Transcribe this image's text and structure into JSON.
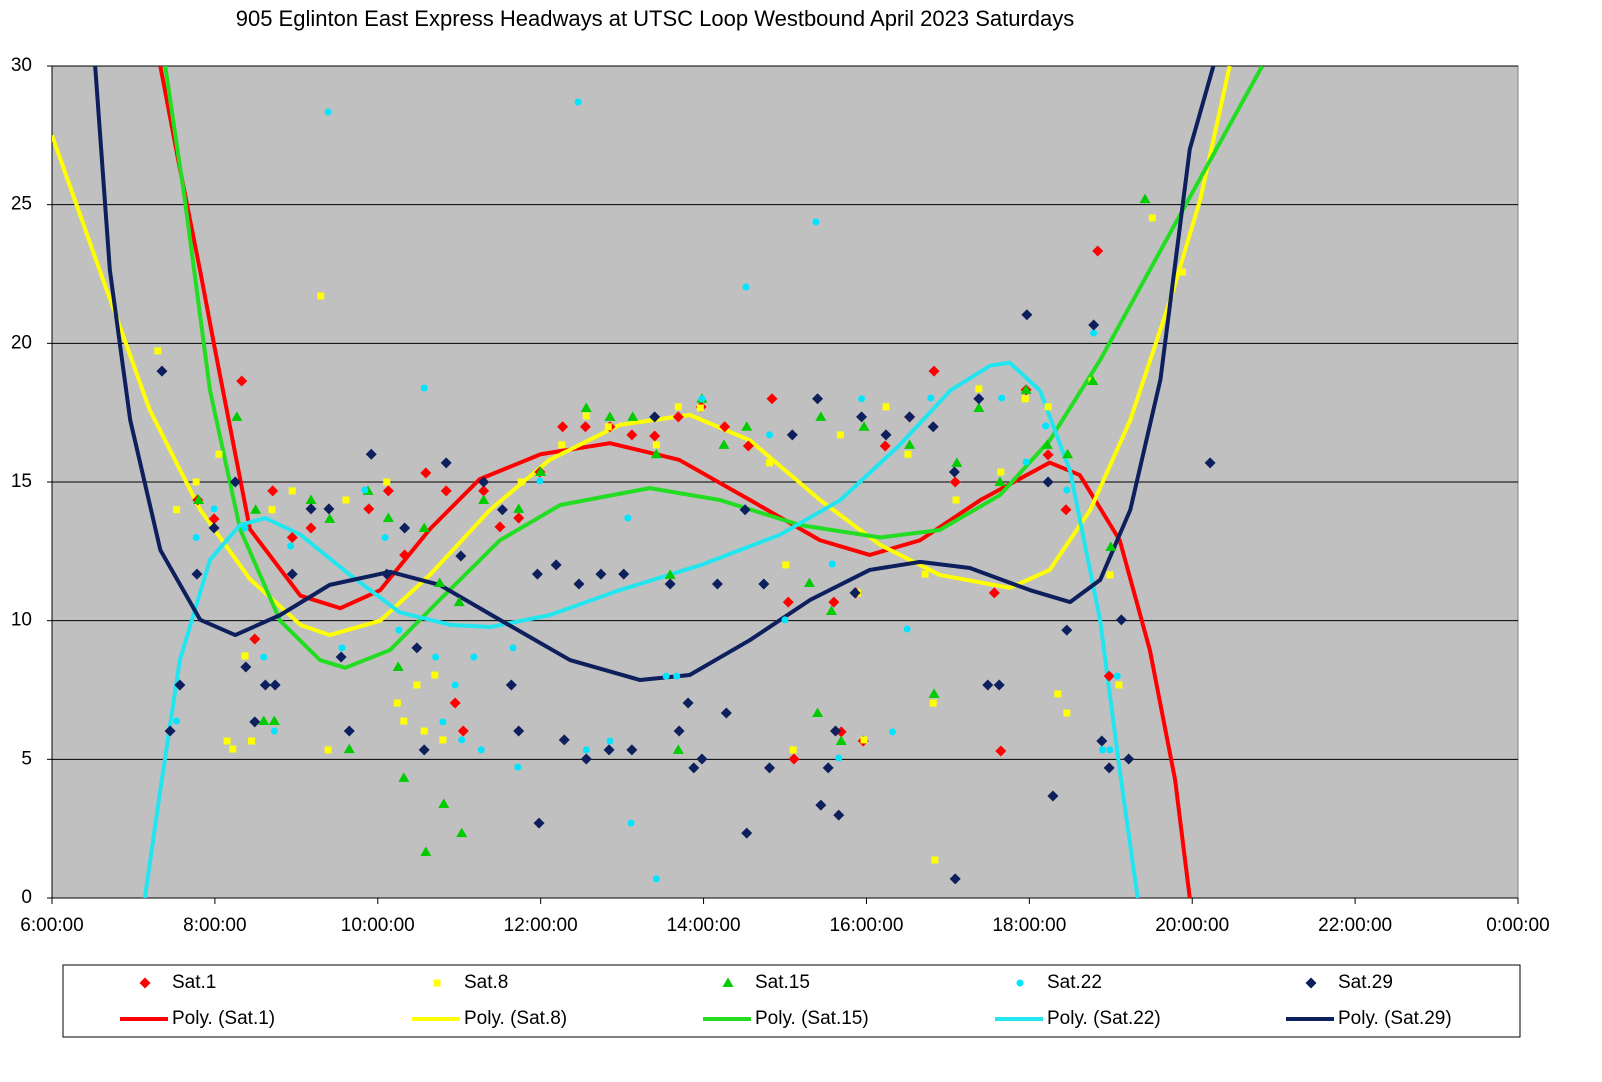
{
  "chart_data": {
    "type": "scatter",
    "title": "905 Eglinton East Express Headways at UTSC Loop Westbound April 2023  Saturdays",
    "xlim": [
      6,
      24
    ],
    "xticks": [
      {
        "value": 6,
        "label": "6:00:00"
      },
      {
        "value": 8,
        "label": "8:00:00"
      },
      {
        "value": 10,
        "label": "10:00:00"
      },
      {
        "value": 12,
        "label": "12:00:00"
      },
      {
        "value": 14,
        "label": "14:00:00"
      },
      {
        "value": 16,
        "label": "16:00:00"
      },
      {
        "value": 18,
        "label": "18:00:00"
      },
      {
        "value": 20,
        "label": "20:00:00"
      },
      {
        "value": 22,
        "label": "22:00:00"
      },
      {
        "value": 24,
        "label": "0:00:00"
      }
    ],
    "ylim": [
      0,
      30
    ],
    "yticks": [
      0,
      5,
      10,
      15,
      20,
      25,
      30
    ],
    "grid": true,
    "legend": "bottom",
    "series": [
      {
        "name": "Sat.1",
        "color": "#ff0000",
        "marker": "diamond",
        "x": [
          7.79,
          7.99,
          8.33,
          8.49,
          8.71,
          8.95,
          9.18,
          9.89,
          10.13,
          10.33,
          10.59,
          10.84,
          10.95,
          11.05,
          11.3,
          11.5,
          11.73,
          11.99,
          12.27,
          12.55,
          12.85,
          13.12,
          13.4,
          13.69,
          13.97,
          14.26,
          14.55,
          14.84,
          15.04,
          15.11,
          15.6,
          15.69,
          15.87,
          15.96,
          16.23,
          16.53,
          16.83,
          17.09,
          17.57,
          17.65,
          17.96,
          18.23,
          18.45,
          18.84,
          18.98
        ],
        "values": [
          14.35,
          13.67,
          18.64,
          9.34,
          14.68,
          13.0,
          13.34,
          14.03,
          14.68,
          12.37,
          15.33,
          14.68,
          7.03,
          6.02,
          14.68,
          13.38,
          13.7,
          15.36,
          16.99,
          16.99,
          16.99,
          16.7,
          16.66,
          17.35,
          17.71,
          16.99,
          16.3,
          18.0,
          10.67,
          5.01,
          10.67,
          5.99,
          11.0,
          5.66,
          16.3,
          17.35,
          19.0,
          15.0,
          11.0,
          5.3,
          18.32,
          15.98,
          14.0,
          23.33,
          8.0
        ]
      },
      {
        "name": "Sat.8",
        "color": "#ffff00",
        "marker": "square",
        "x": [
          7.3,
          7.53,
          7.77,
          8.05,
          8.15,
          8.22,
          8.37,
          8.45,
          8.7,
          8.95,
          9.3,
          9.39,
          9.61,
          10.11,
          10.24,
          10.32,
          10.48,
          10.57,
          10.7,
          10.8,
          11.76,
          12.26,
          12.56,
          12.83,
          13.42,
          13.69,
          13.96,
          14.81,
          15.01,
          15.1,
          15.68,
          15.89,
          15.97,
          16.24,
          16.51,
          16.72,
          16.82,
          16.84,
          17.1,
          17.38,
          17.65,
          17.95,
          18.23,
          18.35,
          18.46,
          18.77,
          18.99,
          19.1,
          19.51,
          19.88
        ],
        "values": [
          19.73,
          14.0,
          15.0,
          16.0,
          5.66,
          5.37,
          8.73,
          5.66,
          14.0,
          14.68,
          21.71,
          5.34,
          14.35,
          15.0,
          7.03,
          6.38,
          7.68,
          6.02,
          8.04,
          5.7,
          15.0,
          16.34,
          17.38,
          16.99,
          16.34,
          17.71,
          17.67,
          15.69,
          12.01,
          5.34,
          16.7,
          11.0,
          5.7,
          17.71,
          16.0,
          11.68,
          7.03,
          1.37,
          14.35,
          18.36,
          15.36,
          18.0,
          17.71,
          7.36,
          6.67,
          18.64,
          11.65,
          7.68,
          24.52,
          22.57
        ]
      },
      {
        "name": "Sat.15",
        "color": "#00cc00",
        "marker": "triangle",
        "x": [
          7.8,
          8.27,
          8.5,
          8.6,
          8.73,
          9.18,
          9.41,
          9.65,
          9.88,
          10.13,
          10.25,
          10.32,
          10.57,
          10.59,
          10.76,
          10.81,
          11.0,
          11.03,
          11.3,
          11.73,
          12.0,
          12.56,
          12.85,
          13.13,
          13.42,
          13.59,
          13.69,
          13.98,
          14.25,
          14.53,
          15.3,
          15.4,
          15.44,
          15.57,
          15.69,
          15.97,
          16.53,
          16.83,
          17.11,
          17.38,
          17.64,
          17.96,
          18.22,
          18.47,
          18.78,
          19.0,
          19.42
        ],
        "values": [
          14.35,
          17.35,
          14.0,
          6.38,
          6.38,
          14.35,
          13.67,
          5.37,
          14.68,
          13.7,
          8.33,
          4.33,
          13.34,
          1.66,
          11.36,
          3.39,
          10.67,
          2.34,
          14.35,
          14.03,
          15.36,
          17.67,
          17.35,
          17.35,
          16.0,
          11.65,
          5.34,
          18.0,
          16.34,
          16.99,
          11.36,
          6.67,
          17.35,
          10.35,
          5.66,
          16.99,
          16.34,
          7.36,
          15.69,
          17.67,
          15.0,
          18.32,
          16.34,
          16.0,
          18.64,
          12.66,
          25.2
        ]
      },
      {
        "name": "Sat.22",
        "color": "#00e5ff",
        "marker": "circle",
        "x": [
          7.53,
          7.77,
          7.99,
          8.37,
          8.6,
          8.73,
          8.93,
          9.39,
          9.56,
          9.84,
          10.09,
          10.26,
          10.57,
          10.71,
          10.8,
          10.95,
          11.03,
          11.18,
          11.27,
          11.66,
          11.72,
          11.99,
          12.46,
          12.56,
          12.85,
          13.07,
          13.11,
          13.42,
          13.54,
          13.67,
          13.98,
          14.52,
          14.81,
          15.0,
          15.38,
          15.58,
          15.66,
          15.94,
          16.32,
          16.5,
          16.79,
          17.66,
          17.96,
          18.2,
          18.46,
          18.79,
          18.9,
          18.99,
          19.08
        ],
        "values": [
          6.38,
          13.0,
          14.03,
          13.34,
          8.69,
          6.02,
          12.69,
          28.34,
          9.02,
          14.71,
          13.0,
          9.66,
          18.39,
          8.69,
          6.35,
          7.68,
          5.7,
          8.69,
          5.34,
          9.02,
          4.72,
          15.04,
          28.7,
          5.34,
          5.66,
          13.7,
          2.7,
          0.69,
          8.0,
          8.0,
          18.0,
          22.03,
          16.7,
          10.03,
          24.38,
          12.04,
          5.05,
          18.0,
          5.99,
          9.7,
          18.03,
          18.03,
          15.72,
          17.02,
          14.71,
          20.37,
          5.34,
          5.34,
          8.0
        ]
      },
      {
        "name": "Sat.29",
        "color": "#0d1f5c",
        "marker": "diamond",
        "x": [
          7.35,
          7.45,
          7.57,
          7.78,
          7.99,
          8.25,
          8.38,
          8.49,
          8.62,
          8.74,
          8.95,
          9.18,
          9.4,
          9.55,
          9.65,
          9.92,
          10.11,
          10.33,
          10.48,
          10.57,
          10.84,
          11.02,
          11.3,
          11.53,
          11.64,
          11.73,
          11.96,
          11.98,
          12.19,
          12.29,
          12.47,
          12.56,
          12.74,
          12.84,
          13.02,
          13.12,
          13.4,
          13.59,
          13.7,
          13.81,
          13.88,
          13.98,
          14.17,
          14.28,
          14.51,
          14.53,
          14.74,
          14.81,
          15.09,
          15.4,
          15.44,
          15.53,
          15.62,
          15.66,
          15.86,
          15.94,
          16.24,
          16.53,
          16.82,
          17.08,
          17.09,
          17.38,
          17.49,
          17.63,
          17.97,
          18.23,
          18.29,
          18.46,
          18.79,
          18.89,
          18.98,
          19.13,
          19.22,
          20.22
        ],
        "values": [
          19.0,
          6.02,
          7.68,
          11.68,
          13.34,
          15.0,
          8.33,
          6.35,
          7.68,
          7.68,
          11.68,
          14.03,
          14.03,
          8.69,
          6.02,
          16.0,
          11.68,
          13.34,
          9.02,
          5.34,
          15.69,
          12.33,
          15.0,
          14.0,
          7.68,
          6.02,
          11.68,
          2.7,
          12.01,
          5.7,
          11.32,
          5.01,
          11.68,
          5.34,
          11.68,
          5.34,
          17.35,
          11.32,
          6.02,
          7.03,
          4.69,
          5.01,
          11.32,
          6.67,
          14.0,
          2.34,
          11.32,
          4.69,
          16.7,
          18.0,
          3.35,
          4.69,
          6.02,
          2.99,
          11.0,
          17.35,
          16.7,
          17.35,
          16.99,
          15.36,
          0.69,
          18.0,
          7.68,
          7.68,
          21.03,
          15.0,
          3.68,
          9.66,
          20.66,
          5.66,
          4.69,
          10.03,
          5.01,
          15.69
        ]
      }
    ],
    "trendlines": [
      {
        "name": "Poly. (Sat.1)",
        "color": "#ff0000",
        "x": [
          7.33,
          7.57,
          7.82,
          8.0,
          8.43,
          9.05,
          9.54,
          10.03,
          10.64,
          11.25,
          12.0,
          12.85,
          13.7,
          14.57,
          15.43,
          16.04,
          16.66,
          17.4,
          18.25,
          18.62,
          19.11,
          19.48,
          19.79,
          19.97
        ],
        "values": [
          30,
          26.3,
          22.6,
          19.8,
          13.3,
          10.9,
          10.45,
          11.1,
          13.3,
          15.1,
          16.0,
          16.4,
          15.8,
          14.35,
          12.9,
          12.37,
          12.9,
          14.35,
          15.7,
          15.25,
          12.9,
          8.94,
          4.26,
          0
        ]
      },
      {
        "name": "Poly. (Sat.8)",
        "color": "#ffff00",
        "x": [
          6.0,
          6.59,
          7.2,
          7.82,
          8.43,
          9.05,
          9.41,
          10.03,
          10.64,
          11.38,
          12.11,
          12.97,
          13.83,
          14.57,
          15.43,
          16.17,
          16.9,
          17.76,
          18.25,
          18.75,
          19.24,
          19.73,
          20.1,
          20.46
        ],
        "values": [
          27.5,
          22.6,
          17.6,
          14.0,
          11.5,
          9.85,
          9.48,
          10.0,
          11.65,
          14.0,
          15.8,
          17.06,
          17.42,
          16.5,
          14.35,
          12.73,
          11.65,
          11.18,
          11.83,
          14.0,
          17.24,
          21.56,
          25.2,
          30
        ]
      },
      {
        "name": "Poly. (Sat.15)",
        "color": "#22dd22",
        "x": [
          7.39,
          7.63,
          7.94,
          8.31,
          8.8,
          9.29,
          9.6,
          10.15,
          10.76,
          11.5,
          12.24,
          13.34,
          14.2,
          15.18,
          16.17,
          16.9,
          17.64,
          18.25,
          18.87,
          19.48,
          20.22,
          20.86
        ],
        "values": [
          30,
          25.2,
          18.3,
          13.3,
          10.0,
          8.58,
          8.3,
          8.94,
          10.75,
          12.9,
          14.17,
          14.78,
          14.35,
          13.45,
          13.0,
          13.27,
          14.53,
          16.5,
          19.4,
          22.65,
          26.6,
          30
        ]
      },
      {
        "name": "Poly. (Sat.22)",
        "color": "#22e5f0",
        "x": [
          7.14,
          7.33,
          7.57,
          7.94,
          8.31,
          8.62,
          9.05,
          9.66,
          10.27,
          10.89,
          11.38,
          12.11,
          12.97,
          13.96,
          14.94,
          15.68,
          16.41,
          17.03,
          17.52,
          17.76,
          18.13,
          18.5,
          18.87,
          19.11,
          19.33
        ],
        "values": [
          0,
          3.9,
          8.58,
          12.2,
          13.45,
          13.7,
          13.1,
          11.65,
          10.3,
          9.85,
          9.77,
          10.2,
          11.1,
          12.0,
          13.1,
          14.35,
          16.34,
          18.3,
          19.2,
          19.3,
          18.3,
          15.4,
          10.0,
          4.6,
          0
        ]
      },
      {
        "name": "Poly. (Sat.29)",
        "color": "#0d1f5c",
        "x": [
          6.53,
          6.71,
          6.96,
          7.33,
          7.82,
          8.25,
          8.8,
          9.41,
          10.15,
          10.76,
          11.5,
          12.36,
          13.22,
          13.83,
          14.57,
          15.31,
          16.04,
          16.66,
          17.27,
          18.01,
          18.5,
          18.87,
          19.24,
          19.61,
          19.97,
          20.26
        ],
        "values": [
          30,
          22.65,
          17.24,
          12.55,
          10.03,
          9.48,
          10.2,
          11.29,
          11.76,
          11.29,
          10.03,
          8.58,
          7.86,
          8.04,
          9.3,
          10.75,
          11.83,
          12.12,
          11.9,
          11.1,
          10.67,
          11.47,
          14.0,
          18.7,
          27.0,
          30
        ]
      }
    ]
  }
}
